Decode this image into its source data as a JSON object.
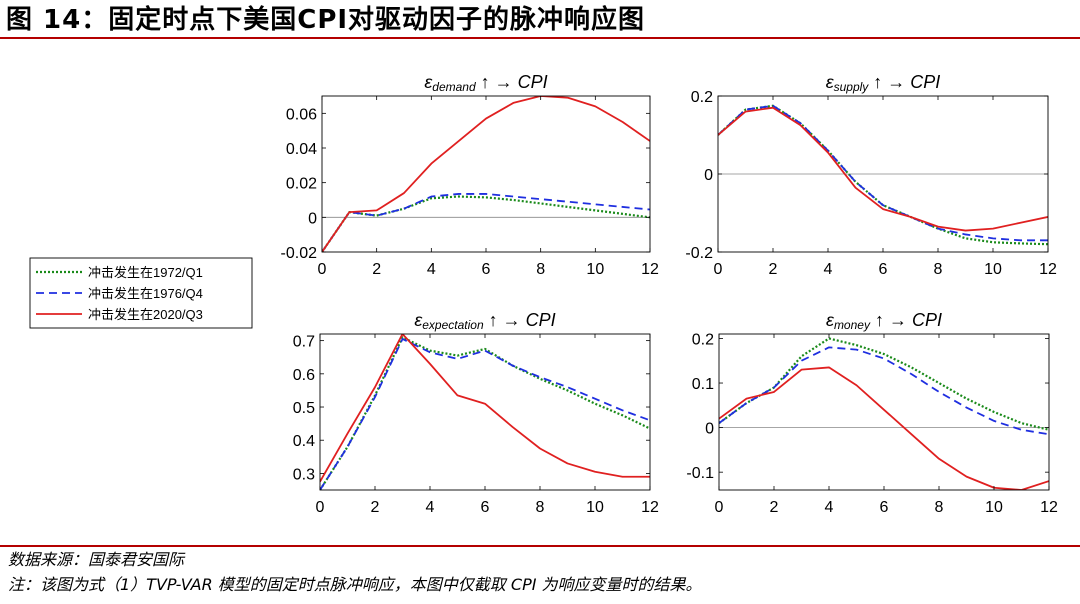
{
  "figure": {
    "title": "图 14：固定时点下美国CPI对驱动因子的脉冲响应图",
    "source": "数据来源：国泰君安国际",
    "note": "注：该图为式（1）TVP-VAR 模型的固定时点脉冲响应，本图中仅截取 CPI 为响应变量时的结果。"
  },
  "legend": {
    "entries": [
      {
        "label": "冲击发生在1972/Q1",
        "color": "#1a8a1a",
        "style": "dotted"
      },
      {
        "label": "冲击发生在1976/Q4",
        "color": "#1f2fe0",
        "style": "dashed"
      },
      {
        "label": "冲击发生在2020/Q3",
        "color": "#e02020",
        "style": "solid"
      }
    ]
  },
  "chart_data": [
    {
      "type": "line",
      "title": "ε_demand ↑ → CPI",
      "shock": "demand",
      "x": [
        0,
        1,
        2,
        3,
        4,
        5,
        6,
        7,
        8,
        9,
        10,
        11,
        12
      ],
      "xlim": [
        0,
        12
      ],
      "xticks": [
        0,
        2,
        4,
        6,
        8,
        10,
        12
      ],
      "ylim": [
        -0.02,
        0.07
      ],
      "yticks": [
        -0.02,
        0,
        0.02,
        0.04,
        0.06
      ],
      "ytick_labels": [
        "-0.02",
        "0",
        "0.02",
        "0.04",
        "0.06"
      ],
      "series": [
        {
          "name": "冲击发生在1972/Q1",
          "values": [
            -0.02,
            0.003,
            0.001,
            0.005,
            0.011,
            0.012,
            0.0115,
            0.01,
            0.008,
            0.006,
            0.004,
            0.002,
            0.0
          ]
        },
        {
          "name": "冲击发生在1976/Q4",
          "values": [
            -0.02,
            0.003,
            0.001,
            0.005,
            0.012,
            0.0135,
            0.0135,
            0.012,
            0.0105,
            0.009,
            0.0075,
            0.006,
            0.0045
          ]
        },
        {
          "name": "冲击发生在2020/Q3",
          "values": [
            -0.02,
            0.003,
            0.004,
            0.014,
            0.031,
            0.044,
            0.057,
            0.066,
            0.07,
            0.069,
            0.064,
            0.055,
            0.044
          ]
        }
      ]
    },
    {
      "type": "line",
      "title": "ε_supply ↑ → CPI",
      "shock": "supply",
      "x": [
        0,
        1,
        2,
        3,
        4,
        5,
        6,
        7,
        8,
        9,
        10,
        11,
        12
      ],
      "xlim": [
        0,
        12
      ],
      "xticks": [
        0,
        2,
        4,
        6,
        8,
        10,
        12
      ],
      "ylim": [
        -0.2,
        0.2
      ],
      "yticks": [
        -0.2,
        0,
        0.2
      ],
      "ytick_labels": [
        "-0.2",
        "0",
        "0.2"
      ],
      "series": [
        {
          "name": "冲击发生在1972/Q1",
          "values": [
            0.1,
            0.165,
            0.175,
            0.13,
            0.06,
            -0.02,
            -0.08,
            -0.11,
            -0.14,
            -0.165,
            -0.175,
            -0.178,
            -0.18
          ]
        },
        {
          "name": "冲击发生在1976/Q4",
          "values": [
            0.1,
            0.165,
            0.175,
            0.13,
            0.06,
            -0.02,
            -0.08,
            -0.11,
            -0.14,
            -0.155,
            -0.165,
            -0.17,
            -0.17
          ]
        },
        {
          "name": "冲击发生在2020/Q3",
          "values": [
            0.1,
            0.16,
            0.17,
            0.125,
            0.055,
            -0.035,
            -0.09,
            -0.11,
            -0.135,
            -0.145,
            -0.14,
            -0.125,
            -0.11
          ]
        }
      ]
    },
    {
      "type": "line",
      "title": "ε_expectation ↑ → CPI",
      "shock": "expectation",
      "x": [
        0,
        1,
        2,
        3,
        4,
        5,
        6,
        7,
        8,
        9,
        10,
        11,
        12
      ],
      "xlim": [
        0,
        12
      ],
      "xticks": [
        0,
        2,
        4,
        6,
        8,
        10,
        12
      ],
      "ylim": [
        0.25,
        0.72
      ],
      "yticks": [
        0.3,
        0.4,
        0.5,
        0.6,
        0.7
      ],
      "ytick_labels": [
        "0.3",
        "0.4",
        "0.5",
        "0.6",
        "0.7"
      ],
      "series": [
        {
          "name": "冲击发生在1972/Q1",
          "values": [
            0.25,
            0.38,
            0.535,
            0.71,
            0.67,
            0.655,
            0.675,
            0.625,
            0.585,
            0.55,
            0.51,
            0.475,
            0.435
          ]
        },
        {
          "name": "冲击发生在1976/Q4",
          "values": [
            0.25,
            0.38,
            0.53,
            0.705,
            0.665,
            0.645,
            0.67,
            0.625,
            0.59,
            0.56,
            0.525,
            0.49,
            0.46
          ]
        },
        {
          "name": "冲击发生在2020/Q3",
          "values": [
            0.275,
            0.42,
            0.56,
            0.72,
            0.63,
            0.535,
            0.51,
            0.44,
            0.375,
            0.33,
            0.305,
            0.29,
            0.29
          ]
        }
      ]
    },
    {
      "type": "line",
      "title": "ε_money ↑ → CPI",
      "shock": "money",
      "x": [
        0,
        1,
        2,
        3,
        4,
        5,
        6,
        7,
        8,
        9,
        10,
        11,
        12
      ],
      "xlim": [
        0,
        12
      ],
      "xticks": [
        0,
        2,
        4,
        6,
        8,
        10,
        12
      ],
      "ylim": [
        -0.14,
        0.21
      ],
      "yticks": [
        -0.1,
        0,
        0.1,
        0.2
      ],
      "ytick_labels": [
        "-0.1",
        "0",
        "0.1",
        "0.2"
      ],
      "series": [
        {
          "name": "冲击发生在1972/Q1",
          "values": [
            0.01,
            0.055,
            0.09,
            0.16,
            0.2,
            0.185,
            0.165,
            0.135,
            0.1,
            0.065,
            0.035,
            0.01,
            -0.005
          ]
        },
        {
          "name": "冲击发生在1976/Q4",
          "values": [
            0.01,
            0.055,
            0.09,
            0.15,
            0.18,
            0.175,
            0.155,
            0.12,
            0.08,
            0.045,
            0.015,
            -0.005,
            -0.015
          ]
        },
        {
          "name": "冲击发生在2020/Q3",
          "values": [
            0.02,
            0.065,
            0.08,
            0.13,
            0.135,
            0.095,
            0.04,
            -0.015,
            -0.07,
            -0.11,
            -0.135,
            -0.14,
            -0.12
          ]
        }
      ]
    }
  ]
}
